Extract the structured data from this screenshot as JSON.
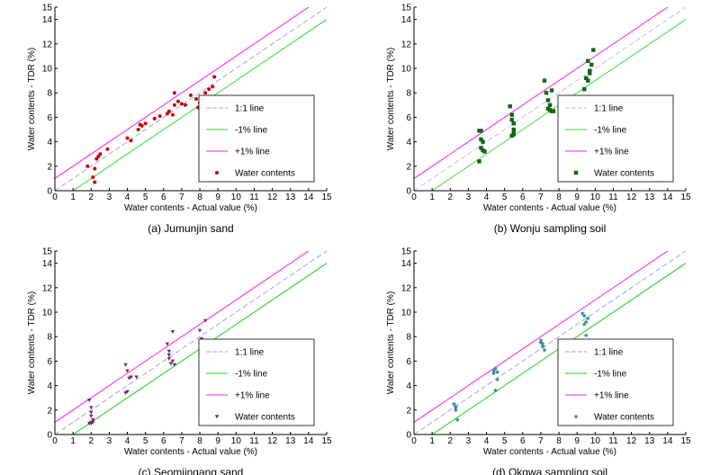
{
  "figure": {
    "panels": [
      "a",
      "b",
      "c",
      "d"
    ]
  },
  "chart_data": [
    {
      "type": "scatter",
      "caption": "(a)  Jumunjin sand",
      "xlabel": "Water contents - Actual value (%)",
      "ylabel": "Water contents - TDR (%)",
      "xlim": [
        0,
        15
      ],
      "ylim": [
        0,
        15
      ],
      "xticks": [
        0,
        1,
        2,
        3,
        4,
        5,
        6,
        7,
        8,
        9,
        10,
        11,
        12,
        13,
        14,
        15
      ],
      "yticks": [
        0,
        2,
        4,
        6,
        8,
        10,
        12,
        14,
        15
      ],
      "legend_position": "lower-right",
      "marker": "circle",
      "lines": [
        {
          "name": "1:1 line",
          "offset": 0,
          "color": "#a3a3f0",
          "dash": true
        },
        {
          "name": "-1% line",
          "offset": -1,
          "color": "#33dd33",
          "dash": false
        },
        {
          "name": "+1% line",
          "offset": 1,
          "color": "#ee22ee",
          "dash": false
        }
      ],
      "series": [
        {
          "name": "Water contents",
          "color": "#cc0000",
          "x": [
            1.8,
            2.1,
            2.2,
            2.3,
            2.4,
            2.2,
            2.5,
            2.9,
            4.0,
            4.2,
            4.6,
            4.7,
            4.8,
            5.0,
            5.5,
            5.8,
            6.2,
            6.3,
            6.5,
            6.6,
            6.8,
            7.0,
            7.2,
            7.5,
            7.8,
            8.0,
            8.2,
            8.3,
            8.4,
            8.5,
            8.7,
            8.8,
            6.6,
            7.9
          ],
          "y": [
            2.0,
            1.1,
            0.7,
            2.6,
            2.8,
            1.8,
            3.0,
            3.4,
            4.3,
            4.1,
            5.0,
            5.4,
            5.3,
            5.5,
            5.9,
            6.1,
            6.3,
            6.5,
            6.2,
            7.0,
            7.3,
            7.1,
            7.0,
            7.8,
            7.5,
            7.2,
            7.6,
            8.0,
            6.6,
            8.3,
            8.5,
            9.3,
            8.0,
            6.8
          ]
        }
      ]
    },
    {
      "type": "scatter",
      "caption": "(b)  Wonju sampling soil",
      "xlabel": "Water contents - Actual value (%)",
      "ylabel": "Water contents - TDR (%)",
      "xlim": [
        0,
        15
      ],
      "ylim": [
        0,
        15
      ],
      "xticks": [
        0,
        1,
        2,
        3,
        4,
        5,
        6,
        7,
        8,
        9,
        10,
        11,
        12,
        13,
        14,
        15
      ],
      "yticks": [
        0,
        2,
        4,
        6,
        8,
        10,
        12,
        14,
        15
      ],
      "legend_position": "lower-right",
      "marker": "square",
      "lines": [
        {
          "name": "1:1 line",
          "offset": 0,
          "color": "#d0b8f0",
          "dash": true
        },
        {
          "name": "-1% line",
          "offset": -1,
          "color": "#44dd44",
          "dash": false
        },
        {
          "name": "+1% line",
          "offset": 1,
          "color": "#ee22ee",
          "dash": false
        }
      ],
      "series": [
        {
          "name": "Water contents",
          "color": "#116611",
          "x": [
            3.6,
            3.7,
            3.7,
            3.8,
            3.9,
            3.7,
            3.8,
            3.6,
            5.3,
            5.4,
            5.4,
            5.5,
            5.5,
            5.5,
            5.4,
            5.5,
            7.2,
            7.3,
            7.4,
            7.5,
            7.6,
            7.6,
            7.5,
            7.7,
            7.4,
            9.4,
            9.5,
            9.6,
            9.7,
            9.8,
            9.9,
            9.7,
            9.6
          ],
          "y": [
            4.9,
            4.9,
            4.2,
            4.0,
            3.2,
            3.5,
            3.3,
            2.4,
            6.9,
            6.2,
            5.8,
            5.5,
            5.0,
            4.6,
            4.5,
            4.7,
            9.0,
            8.0,
            7.4,
            6.6,
            6.5,
            8.2,
            7.0,
            6.5,
            6.7,
            8.3,
            9.2,
            9.0,
            9.6,
            10.3,
            11.5,
            9.8,
            10.6
          ]
        }
      ]
    },
    {
      "type": "scatter",
      "caption": "(c)  Seomjingang sand",
      "xlabel": "Water contents - Actual value (%)",
      "ylabel": "Water contents - TDR (%)",
      "xlim": [
        0,
        15
      ],
      "ylim": [
        0,
        15
      ],
      "xticks": [
        0,
        1,
        2,
        3,
        4,
        5,
        6,
        7,
        8,
        9,
        10,
        11,
        12,
        13,
        14,
        15
      ],
      "yticks": [
        0,
        2,
        4,
        6,
        8,
        10,
        12,
        14,
        15
      ],
      "legend_position": "lower-right",
      "marker": "triangle-down",
      "lines": [
        {
          "name": "1:1 line",
          "offset": 0,
          "color": "#a3a3f0",
          "dash": true
        },
        {
          "name": "-1% line",
          "offset": -1,
          "color": "#22cc22",
          "dash": false
        },
        {
          "name": "+1% line",
          "offset": 1,
          "color": "#ee22ee",
          "dash": false
        }
      ],
      "series": [
        {
          "name": "Water contents",
          "color": "#7a2277",
          "x": [
            1.9,
            2.0,
            2.0,
            2.0,
            2.1,
            2.0,
            2.1,
            2.0,
            1.9,
            3.9,
            4.0,
            3.9,
            4.0,
            4.1,
            4.2,
            4.5,
            6.2,
            6.3,
            6.3,
            6.4,
            6.5,
            6.5,
            6.6,
            6.3,
            8.0,
            8.1,
            8.2,
            8.3,
            8.3,
            8.2,
            8.1
          ],
          "y": [
            2.8,
            2.2,
            1.8,
            1.5,
            1.2,
            1.0,
            1.0,
            0.9,
            0.9,
            5.7,
            5.2,
            3.4,
            3.5,
            4.6,
            4.7,
            4.7,
            7.4,
            6.8,
            6.2,
            5.8,
            6.0,
            8.4,
            5.7,
            6.5,
            8.5,
            7.8,
            7.4,
            9.3,
            7.3,
            7.6,
            7.5
          ]
        }
      ]
    },
    {
      "type": "scatter",
      "caption": "(d)  Okgwa sampling soil",
      "xlabel": "Water contents - Actual value (%)",
      "ylabel": "Water contents - TDR (%)",
      "xlim": [
        0,
        15
      ],
      "ylim": [
        0,
        15
      ],
      "xticks": [
        0,
        1,
        2,
        3,
        4,
        5,
        6,
        7,
        8,
        9,
        10,
        11,
        12,
        13,
        14,
        15
      ],
      "yticks": [
        0,
        2,
        4,
        6,
        8,
        10,
        12,
        14,
        15
      ],
      "legend_position": "lower-right",
      "marker": "star",
      "lines": [
        {
          "name": "1:1 line",
          "offset": 0,
          "color": "#a3a3f0",
          "dash": true
        },
        {
          "name": "-1% line",
          "offset": -1,
          "color": "#22cc22",
          "dash": false
        },
        {
          "name": "+1% line",
          "offset": 1,
          "color": "#ee22ee",
          "dash": false
        }
      ],
      "series": [
        {
          "name": "Water contents",
          "color": "#338888",
          "x": [
            2.2,
            2.3,
            2.3,
            2.4,
            2.3,
            4.4,
            4.5,
            4.6,
            4.5,
            4.6,
            4.4,
            7.0,
            7.1,
            7.1,
            7.2,
            7.0,
            9.3,
            9.4,
            9.5,
            9.4,
            9.6,
            9.5
          ],
          "y": [
            2.5,
            2.3,
            2.0,
            1.2,
            2.2,
            5.2,
            5.4,
            5.1,
            3.6,
            4.5,
            5.0,
            7.7,
            7.4,
            7.2,
            6.9,
            7.5,
            9.9,
            9.7,
            8.1,
            9.0,
            9.5,
            9.2
          ]
        }
      ]
    }
  ]
}
